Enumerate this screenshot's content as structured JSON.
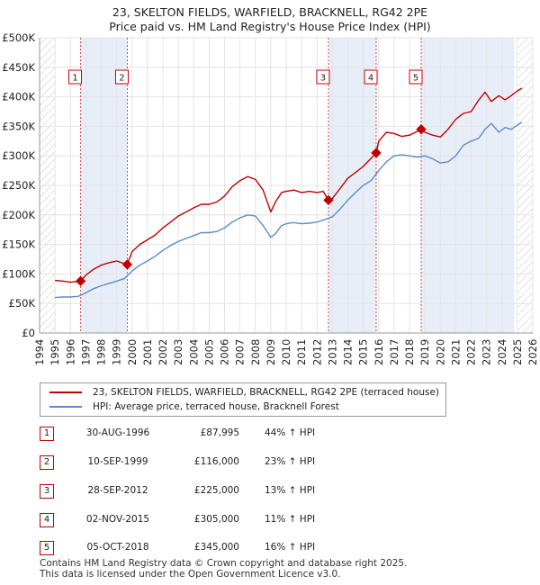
{
  "title": {
    "line1": "23, SKELTON FIELDS, WARFIELD, BRACKNELL, RG42 2PE",
    "line2": "Price paid vs. HM Land Registry's House Price Index (HPI)"
  },
  "colors": {
    "red": "#c00000",
    "blue": "#5b8cc8",
    "band": "#e8eef8"
  },
  "legend": {
    "red_label": "23, SKELTON FIELDS, WARFIELD, BRACKNELL, RG42 2PE (terraced house)",
    "blue_label": "HPI: Average price, terraced house, Bracknell Forest"
  },
  "sales": [
    {
      "num": "1",
      "date": "30-AUG-1996",
      "price": "£87,995",
      "hpi": "44% ↑ HPI"
    },
    {
      "num": "2",
      "date": "10-SEP-1999",
      "price": "£116,000",
      "hpi": "23% ↑ HPI"
    },
    {
      "num": "3",
      "date": "28-SEP-2012",
      "price": "£225,000",
      "hpi": "13% ↑ HPI"
    },
    {
      "num": "4",
      "date": "02-NOV-2015",
      "price": "£305,000",
      "hpi": "11% ↑ HPI"
    },
    {
      "num": "5",
      "date": "05-OCT-2018",
      "price": "£345,000",
      "hpi": "16% ↑ HPI"
    }
  ],
  "footer": {
    "line1": "Contains HM Land Registry data © Crown copyright and database right 2025.",
    "line2": "This data is licensed under the Open Government Licence v3.0."
  },
  "chart_data": {
    "type": "line",
    "title": "Price paid vs. HM Land Registry's House Price Index (HPI)",
    "xlim": [
      1994.0,
      2026.0
    ],
    "ylim": [
      0,
      500000
    ],
    "x_ticks": [
      1994,
      1995,
      1996,
      1997,
      1998,
      1999,
      2000,
      2001,
      2002,
      2003,
      2004,
      2005,
      2006,
      2007,
      2008,
      2009,
      2010,
      2011,
      2012,
      2013,
      2014,
      2015,
      2016,
      2017,
      2018,
      2019,
      2020,
      2021,
      2022,
      2023,
      2024,
      2025,
      2026
    ],
    "y_ticks": [
      {
        "value": 0,
        "label": "£0"
      },
      {
        "value": 50000,
        "label": "£50K"
      },
      {
        "value": 100000,
        "label": "£100K"
      },
      {
        "value": 150000,
        "label": "£150K"
      },
      {
        "value": 200000,
        "label": "£200K"
      },
      {
        "value": 250000,
        "label": "£250K"
      },
      {
        "value": 300000,
        "label": "£300K"
      },
      {
        "value": 350000,
        "label": "£350K"
      },
      {
        "value": 400000,
        "label": "£400K"
      },
      {
        "value": 450000,
        "label": "£450K"
      },
      {
        "value": 500000,
        "label": "£500K"
      }
    ],
    "shaded_ranges": [
      [
        1996.66,
        1999.69
      ],
      [
        2012.74,
        2015.84
      ],
      [
        2018.76,
        2024.8
      ]
    ],
    "hatched_ranges": [
      [
        1994.0,
        1995.0
      ],
      [
        2025.0,
        2026.0
      ]
    ],
    "sales": [
      {
        "label": "1",
        "x": 1996.66,
        "y": 87995
      },
      {
        "label": "2",
        "x": 1999.69,
        "y": 116000
      },
      {
        "label": "3",
        "x": 2012.74,
        "y": 225000
      },
      {
        "label": "4",
        "x": 2015.84,
        "y": 305000
      },
      {
        "label": "5",
        "x": 2018.76,
        "y": 345000
      }
    ],
    "series": [
      {
        "name": "23, SKELTON FIELDS, WARFIELD, BRACKNELL, RG42 2PE (terraced house)",
        "color": "#c00000",
        "x": [
          1995.0,
          1995.5,
          1996.0,
          1996.66,
          1997.0,
          1997.5,
          1998.0,
          1998.5,
          1999.0,
          1999.69,
          2000.0,
          2000.5,
          2001.0,
          2001.5,
          2002.0,
          2002.5,
          2003.0,
          2003.5,
          2004.0,
          2004.5,
          2005.0,
          2005.5,
          2006.0,
          2006.5,
          2007.0,
          2007.5,
          2008.0,
          2008.5,
          2009.0,
          2009.3,
          2009.7,
          2010.0,
          2010.5,
          2011.0,
          2011.5,
          2012.0,
          2012.4,
          2012.74,
          2013.0,
          2013.5,
          2014.0,
          2014.5,
          2015.0,
          2015.84,
          2016.0,
          2016.5,
          2017.0,
          2017.5,
          2018.0,
          2018.76,
          2019.0,
          2019.5,
          2020.0,
          2020.5,
          2021.0,
          2021.5,
          2022.0,
          2022.5,
          2022.9,
          2023.3,
          2023.8,
          2024.2,
          2024.6,
          2025.0,
          2025.3
        ],
        "y": [
          89000,
          88000,
          86000,
          87995,
          98000,
          108000,
          115000,
          119000,
          122000,
          116000,
          138000,
          150000,
          158000,
          166000,
          178000,
          188000,
          198000,
          205000,
          212000,
          218000,
          218000,
          222000,
          232000,
          248000,
          258000,
          265000,
          260000,
          242000,
          205000,
          222000,
          238000,
          240000,
          242000,
          238000,
          240000,
          238000,
          240000,
          225000,
          228000,
          245000,
          262000,
          272000,
          282000,
          305000,
          325000,
          340000,
          338000,
          333000,
          335000,
          345000,
          340000,
          335000,
          332000,
          345000,
          362000,
          372000,
          375000,
          395000,
          408000,
          392000,
          402000,
          395000,
          402000,
          410000,
          415000
        ]
      },
      {
        "name": "HPI: Average price, terraced house, Bracknell Forest",
        "color": "#5b8cc8",
        "x": [
          1995.0,
          1995.5,
          1996.0,
          1996.5,
          1997.0,
          1997.5,
          1998.0,
          1998.5,
          1999.0,
          1999.5,
          2000.0,
          2000.5,
          2001.0,
          2001.5,
          2002.0,
          2002.5,
          2003.0,
          2003.5,
          2004.0,
          2004.5,
          2005.0,
          2005.5,
          2006.0,
          2006.5,
          2007.0,
          2007.5,
          2008.0,
          2008.5,
          2009.0,
          2009.3,
          2009.7,
          2010.0,
          2010.5,
          2011.0,
          2011.5,
          2012.0,
          2012.5,
          2013.0,
          2013.5,
          2014.0,
          2014.5,
          2015.0,
          2015.5,
          2016.0,
          2016.5,
          2017.0,
          2017.5,
          2018.0,
          2018.5,
          2019.0,
          2019.5,
          2020.0,
          2020.5,
          2021.0,
          2021.5,
          2022.0,
          2022.5,
          2022.9,
          2023.3,
          2023.8,
          2024.2,
          2024.6,
          2025.0,
          2025.3
        ],
        "y": [
          60000,
          61000,
          61000,
          62000,
          68000,
          75000,
          80000,
          84000,
          88000,
          92000,
          105000,
          115000,
          122000,
          130000,
          140000,
          148000,
          155000,
          160000,
          165000,
          170000,
          170000,
          172000,
          178000,
          188000,
          195000,
          200000,
          198000,
          182000,
          162000,
          168000,
          182000,
          185000,
          187000,
          185000,
          186000,
          188000,
          192000,
          197000,
          210000,
          225000,
          238000,
          250000,
          258000,
          275000,
          290000,
          300000,
          302000,
          300000,
          298000,
          300000,
          295000,
          288000,
          290000,
          300000,
          318000,
          325000,
          330000,
          345000,
          355000,
          340000,
          348000,
          345000,
          352000,
          357000
        ]
      }
    ]
  }
}
